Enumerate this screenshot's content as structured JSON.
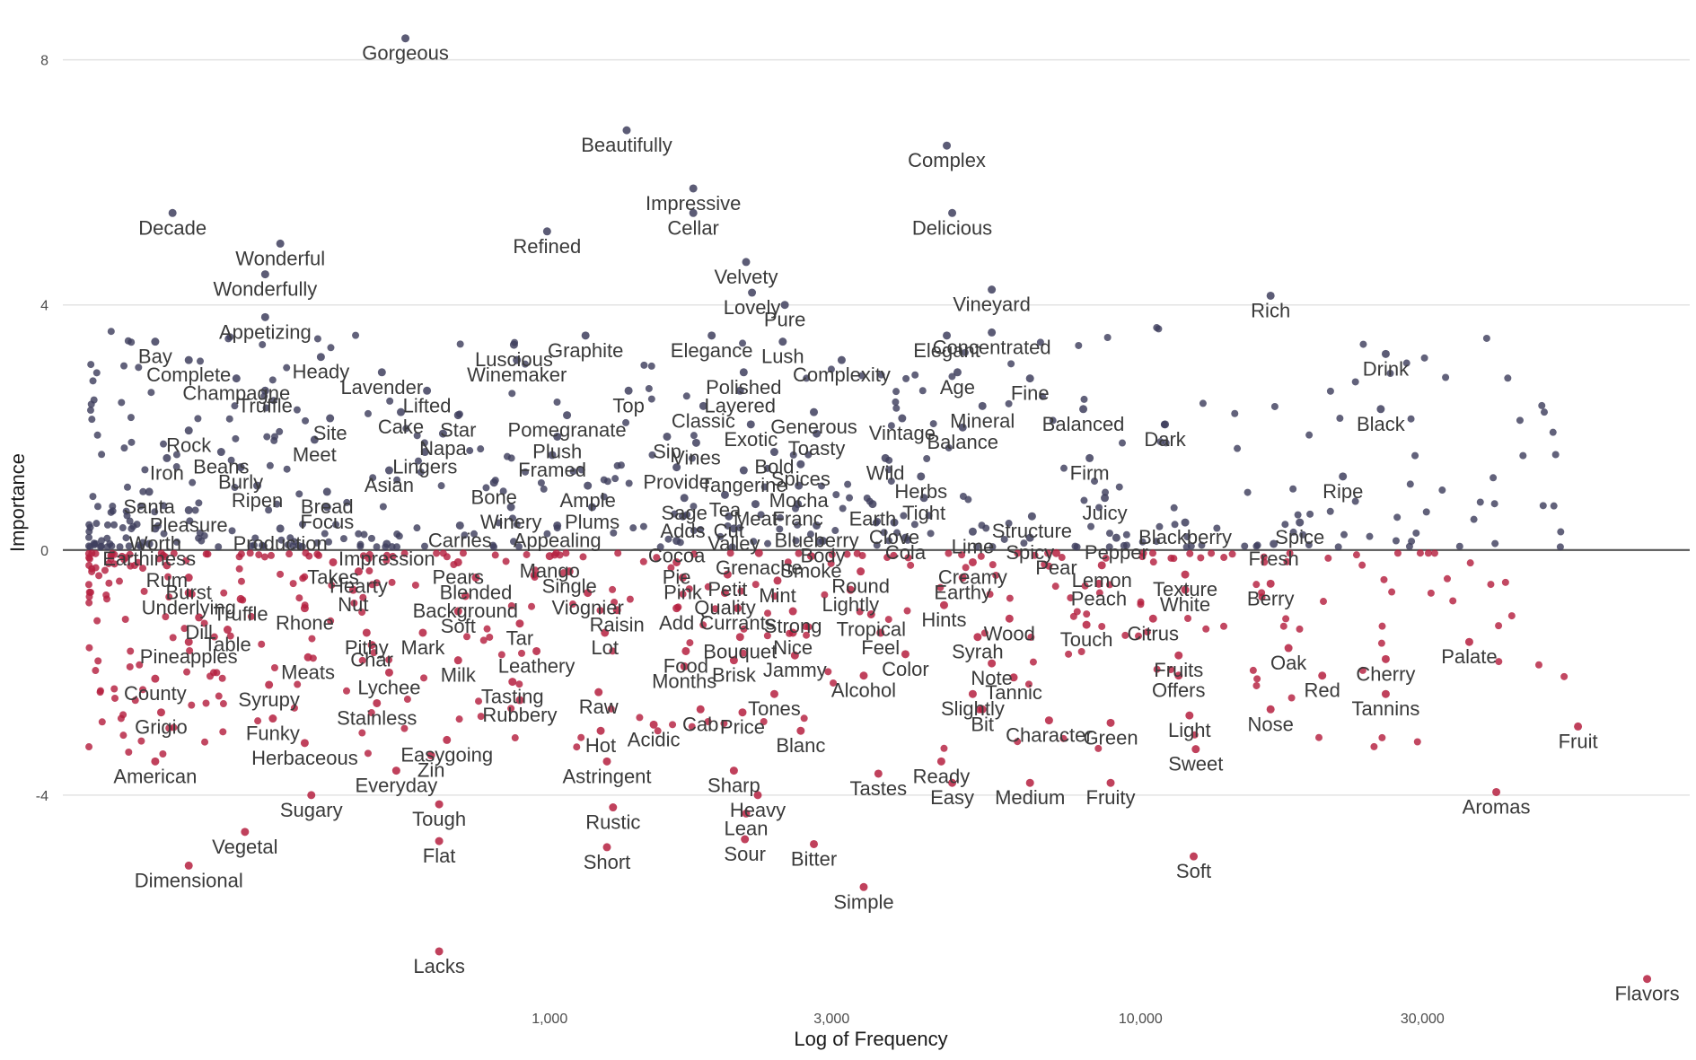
{
  "chart_data": {
    "type": "scatter",
    "xlabel": "Log of Frequency",
    "ylabel": "Importance",
    "x_scale": "log",
    "xlim": [
      150,
      85000
    ],
    "ylim": [
      -7.4,
      8.8
    ],
    "x_ticks": [
      {
        "value": 1000,
        "label": "1,000"
      },
      {
        "value": 3000,
        "label": "3,000"
      },
      {
        "value": 10000,
        "label": "10,000"
      },
      {
        "value": 30000,
        "label": "30,000"
      }
    ],
    "y_ticks": [
      {
        "value": 8,
        "label": "8"
      },
      {
        "value": 4,
        "label": "4"
      },
      {
        "value": 0,
        "label": "0"
      },
      {
        "value": -4,
        "label": "-4"
      }
    ],
    "grid": "horizontal",
    "legend": "none",
    "reference_line_y": 0,
    "colors": {
      "positive": "#3f3f5e",
      "negative": "#b5203f",
      "zero_line": "#555555",
      "grid": "#e3e3e3"
    },
    "labeled_points": [
      {
        "label": "Gorgeous",
        "x": 570,
        "y": 8.35
      },
      {
        "label": "Beautifully",
        "x": 1350,
        "y": 6.85
      },
      {
        "label": "Complex",
        "x": 4700,
        "y": 6.6
      },
      {
        "label": "Impressive",
        "x": 1750,
        "y": 5.9
      },
      {
        "label": "Cellar",
        "x": 1750,
        "y": 5.5
      },
      {
        "label": "Decade",
        "x": 230,
        "y": 5.5
      },
      {
        "label": "Delicious",
        "x": 4800,
        "y": 5.5
      },
      {
        "label": "Refined",
        "x": 990,
        "y": 5.2
      },
      {
        "label": "Wonderful",
        "x": 350,
        "y": 5.0
      },
      {
        "label": "Velvety",
        "x": 2150,
        "y": 4.7
      },
      {
        "label": "Wonderfully",
        "x": 330,
        "y": 4.5
      },
      {
        "label": "Lovely",
        "x": 2200,
        "y": 4.2
      },
      {
        "label": "Vineyard",
        "x": 5600,
        "y": 4.25
      },
      {
        "label": "Rich",
        "x": 16600,
        "y": 4.15
      },
      {
        "label": "Pure",
        "x": 2500,
        "y": 4.0
      },
      {
        "label": "Appetizing",
        "x": 330,
        "y": 3.8
      },
      {
        "label": "Elegant",
        "x": 4700,
        "y": 3.5
      },
      {
        "label": "Concentrated",
        "x": 5600,
        "y": 3.55
      },
      {
        "label": "Bay",
        "x": 215,
        "y": 3.4
      },
      {
        "label": "Luscious",
        "x": 870,
        "y": 3.35
      },
      {
        "label": "Graphite",
        "x": 1150,
        "y": 3.5
      },
      {
        "label": "Elegance",
        "x": 1880,
        "y": 3.5
      },
      {
        "label": "Lush",
        "x": 2480,
        "y": 3.4
      },
      {
        "label": "Drink",
        "x": 26000,
        "y": 3.2
      },
      {
        "label": "Heady",
        "x": 410,
        "y": 3.15
      },
      {
        "label": "Complete",
        "x": 245,
        "y": 3.1
      },
      {
        "label": "Winemaker",
        "x": 880,
        "y": 3.1
      },
      {
        "label": "Complexity",
        "x": 3120,
        "y": 3.1
      },
      {
        "label": "Age",
        "x": 4900,
        "y": 2.9
      },
      {
        "label": "Polished",
        "x": 2130,
        "y": 2.9
      },
      {
        "label": "Champagne",
        "x": 295,
        "y": 2.8
      },
      {
        "label": "Lavender",
        "x": 520,
        "y": 2.9
      },
      {
        "label": "Fine",
        "x": 6500,
        "y": 2.8
      },
      {
        "label": "Truffle",
        "x": 330,
        "y": 2.6
      },
      {
        "label": "Top",
        "x": 1360,
        "y": 2.6
      },
      {
        "label": "Layered",
        "x": 2100,
        "y": 2.6
      },
      {
        "label": "Lifted",
        "x": 620,
        "y": 2.6
      },
      {
        "label": "Mineral",
        "x": 5400,
        "y": 2.35
      },
      {
        "label": "Balanced",
        "x": 8000,
        "y": 2.3
      },
      {
        "label": "Black",
        "x": 25500,
        "y": 2.3
      },
      {
        "label": "Classic",
        "x": 1820,
        "y": 2.35
      },
      {
        "label": "Generous",
        "x": 2800,
        "y": 2.25
      },
      {
        "label": "Vintage",
        "x": 3950,
        "y": 2.15
      },
      {
        "label": "Cake",
        "x": 560,
        "y": 2.25
      },
      {
        "label": "Star",
        "x": 700,
        "y": 2.2
      },
      {
        "label": "Pomegranate",
        "x": 1070,
        "y": 2.2
      },
      {
        "label": "Site",
        "x": 425,
        "y": 2.15
      },
      {
        "label": "Exotic",
        "x": 2190,
        "y": 2.05
      },
      {
        "label": "Dark",
        "x": 11000,
        "y": 2.05
      },
      {
        "label": "Balance",
        "x": 5000,
        "y": 2.0
      },
      {
        "label": "Rock",
        "x": 245,
        "y": 1.95
      },
      {
        "label": "Napa",
        "x": 660,
        "y": 1.9
      },
      {
        "label": "Toasty",
        "x": 2830,
        "y": 1.9
      },
      {
        "label": "Meet",
        "x": 400,
        "y": 1.8
      },
      {
        "label": "Plush",
        "x": 1030,
        "y": 1.85
      },
      {
        "label": "Sip",
        "x": 1580,
        "y": 1.85
      },
      {
        "label": "Vines",
        "x": 1770,
        "y": 1.75
      },
      {
        "label": "Iron",
        "x": 225,
        "y": 1.5
      },
      {
        "label": "Beans",
        "x": 278,
        "y": 1.6
      },
      {
        "label": "Lingers",
        "x": 615,
        "y": 1.6
      },
      {
        "label": "Framed",
        "x": 1010,
        "y": 1.55
      },
      {
        "label": "Bold",
        "x": 2400,
        "y": 1.6
      },
      {
        "label": "Wild",
        "x": 3700,
        "y": 1.5
      },
      {
        "label": "Firm",
        "x": 8200,
        "y": 1.5
      },
      {
        "label": "Burly",
        "x": 300,
        "y": 1.35
      },
      {
        "label": "Asian",
        "x": 535,
        "y": 1.3
      },
      {
        "label": "Provide",
        "x": 1640,
        "y": 1.35
      },
      {
        "label": "Tangerine",
        "x": 2130,
        "y": 1.3
      },
      {
        "label": "Spices",
        "x": 2660,
        "y": 1.4
      },
      {
        "label": "Herbs",
        "x": 4250,
        "y": 1.2
      },
      {
        "label": "Ripe",
        "x": 22000,
        "y": 1.2
      },
      {
        "label": "Ripen",
        "x": 320,
        "y": 1.05
      },
      {
        "label": "Bone",
        "x": 805,
        "y": 1.1
      },
      {
        "label": "Ample",
        "x": 1160,
        "y": 1.05
      },
      {
        "label": "Mocha",
        "x": 2640,
        "y": 1.05
      },
      {
        "label": "Santa",
        "x": 210,
        "y": 0.95
      },
      {
        "label": "Bread",
        "x": 420,
        "y": 0.95
      },
      {
        "label": "Sage",
        "x": 1690,
        "y": 0.85
      },
      {
        "label": "Tea",
        "x": 1980,
        "y": 0.9
      },
      {
        "label": "Tight",
        "x": 4300,
        "y": 0.85
      },
      {
        "label": "Juicy",
        "x": 8700,
        "y": 0.85
      },
      {
        "label": "Focus",
        "x": 420,
        "y": 0.7
      },
      {
        "label": "Winery",
        "x": 860,
        "y": 0.7
      },
      {
        "label": "Plums",
        "x": 1180,
        "y": 0.7
      },
      {
        "label": "Meat",
        "x": 2230,
        "y": 0.75
      },
      {
        "label": "Franc",
        "x": 2630,
        "y": 0.75
      },
      {
        "label": "Earth",
        "x": 3520,
        "y": 0.75
      },
      {
        "label": "Pleasure",
        "x": 245,
        "y": 0.65
      },
      {
        "label": "Adds",
        "x": 1680,
        "y": 0.55
      },
      {
        "label": "Cut",
        "x": 2010,
        "y": 0.55
      },
      {
        "label": "Structure",
        "x": 6550,
        "y": 0.55
      },
      {
        "label": "Blackberry",
        "x": 11900,
        "y": 0.45
      },
      {
        "label": "Spice",
        "x": 18600,
        "y": 0.45
      },
      {
        "label": "Clove",
        "x": 3830,
        "y": 0.45
      },
      {
        "label": "Blueberry",
        "x": 2830,
        "y": 0.4
      },
      {
        "label": "Carries",
        "x": 705,
        "y": 0.4
      },
      {
        "label": "Appealing",
        "x": 1030,
        "y": 0.4
      },
      {
        "label": "Worth",
        "x": 215,
        "y": 0.35
      },
      {
        "label": "Production",
        "x": 350,
        "y": 0.35
      },
      {
        "label": "Valley",
        "x": 2050,
        "y": 0.35
      },
      {
        "label": "Lime",
        "x": 5200,
        "y": 0.3
      },
      {
        "label": "Cola",
        "x": 4000,
        "y": 0.2
      },
      {
        "label": "Spicy",
        "x": 6500,
        "y": 0.2
      },
      {
        "label": "Pepper",
        "x": 9100,
        "y": 0.2
      },
      {
        "label": "Fresh",
        "x": 16800,
        "y": 0.1
      },
      {
        "label": "Earthiness",
        "x": 210,
        "y": 0.1
      },
      {
        "label": "Impression",
        "x": 530,
        "y": 0.1
      },
      {
        "label": "Cocoa",
        "x": 1640,
        "y": 0.15
      },
      {
        "label": "Body",
        "x": 2900,
        "y": 0.15
      },
      {
        "label": "Pear",
        "x": 7200,
        "y": -0.05
      },
      {
        "label": "Grenache",
        "x": 2260,
        "y": -0.05
      },
      {
        "label": "Mango",
        "x": 1000,
        "y": -0.1
      },
      {
        "label": "Smoke",
        "x": 2770,
        "y": -0.1
      },
      {
        "label": "Takes",
        "x": 430,
        "y": -0.2
      },
      {
        "label": "Pears",
        "x": 700,
        "y": -0.2
      },
      {
        "label": "Rum",
        "x": 225,
        "y": -0.25
      },
      {
        "label": "Pie",
        "x": 1640,
        "y": -0.2
      },
      {
        "label": "Creamy",
        "x": 5200,
        "y": -0.2
      },
      {
        "label": "Lemon",
        "x": 8600,
        "y": -0.25
      },
      {
        "label": "Single",
        "x": 1080,
        "y": -0.35
      },
      {
        "label": "Hearty",
        "x": 475,
        "y": -0.35
      },
      {
        "label": "Petit",
        "x": 2000,
        "y": -0.4
      },
      {
        "label": "Round",
        "x": 3360,
        "y": -0.35
      },
      {
        "label": "Texture",
        "x": 11900,
        "y": -0.4
      },
      {
        "label": "Burst",
        "x": 245,
        "y": -0.45
      },
      {
        "label": "Blended",
        "x": 750,
        "y": -0.45
      },
      {
        "label": "Pink",
        "x": 1680,
        "y": -0.45
      },
      {
        "label": "Mint",
        "x": 2430,
        "y": -0.5
      },
      {
        "label": "Earthy",
        "x": 5000,
        "y": -0.45
      },
      {
        "label": "Peach",
        "x": 8500,
        "y": -0.55
      },
      {
        "label": "Lightly",
        "x": 3230,
        "y": -0.65
      },
      {
        "label": "Quality",
        "x": 1980,
        "y": -0.7
      },
      {
        "label": "Nut",
        "x": 465,
        "y": -0.65
      },
      {
        "label": "Underlying",
        "x": 245,
        "y": -0.7
      },
      {
        "label": "Background",
        "x": 720,
        "y": -0.75
      },
      {
        "label": "Viognier",
        "x": 1160,
        "y": -0.7
      },
      {
        "label": "White",
        "x": 11900,
        "y": -0.65
      },
      {
        "label": "Berry",
        "x": 16600,
        "y": -0.55
      },
      {
        "label": "Truffle",
        "x": 300,
        "y": -0.8
      },
      {
        "label": "Hints",
        "x": 4650,
        "y": -0.9
      },
      {
        "label": "Rhone",
        "x": 385,
        "y": -0.95
      },
      {
        "label": "Currants",
        "x": 2080,
        "y": -0.95
      },
      {
        "label": "Add",
        "x": 1640,
        "y": -0.95
      },
      {
        "label": "Raisin",
        "x": 1300,
        "y": -0.98
      },
      {
        "label": "Strong",
        "x": 2580,
        "y": -1.0
      },
      {
        "label": "Tropical",
        "x": 3500,
        "y": -1.05
      },
      {
        "label": "Soft",
        "x": 700,
        "y": -1.0
      },
      {
        "label": "Dill",
        "x": 255,
        "y": -1.1
      },
      {
        "label": "Wood",
        "x": 6000,
        "y": -1.12
      },
      {
        "label": "Citrus",
        "x": 10500,
        "y": -1.12
      },
      {
        "label": "Tar",
        "x": 890,
        "y": -1.2
      },
      {
        "label": "Table",
        "x": 285,
        "y": -1.3
      },
      {
        "label": "Touch",
        "x": 8100,
        "y": -1.22
      },
      {
        "label": "Feel",
        "x": 3630,
        "y": -1.35
      },
      {
        "label": "Nice",
        "x": 2580,
        "y": -1.35
      },
      {
        "label": "Lot",
        "x": 1240,
        "y": -1.35
      },
      {
        "label": "Pithy",
        "x": 490,
        "y": -1.35
      },
      {
        "label": "Mark",
        "x": 610,
        "y": -1.35
      },
      {
        "label": "Syrah",
        "x": 5300,
        "y": -1.42
      },
      {
        "label": "Bouquet",
        "x": 2100,
        "y": -1.42
      },
      {
        "label": "Pineapples",
        "x": 245,
        "y": -1.5
      },
      {
        "label": "Char",
        "x": 500,
        "y": -1.55
      },
      {
        "label": "Oak",
        "x": 17800,
        "y": -1.6
      },
      {
        "label": "Palate",
        "x": 36000,
        "y": -1.5
      },
      {
        "label": "Leathery",
        "x": 950,
        "y": -1.65
      },
      {
        "label": "Food",
        "x": 1700,
        "y": -1.65
      },
      {
        "label": "Jammy",
        "x": 2600,
        "y": -1.72
      },
      {
        "label": "Color",
        "x": 4000,
        "y": -1.7
      },
      {
        "label": "Meats",
        "x": 390,
        "y": -1.75
      },
      {
        "label": "Milk",
        "x": 700,
        "y": -1.8
      },
      {
        "label": "Brisk",
        "x": 2050,
        "y": -1.8
      },
      {
        "label": "Fruits",
        "x": 11600,
        "y": -1.72
      },
      {
        "label": "Cherry",
        "x": 26000,
        "y": -1.78
      },
      {
        "label": "Months",
        "x": 1690,
        "y": -1.9
      },
      {
        "label": "Note",
        "x": 5600,
        "y": -1.85
      },
      {
        "label": "Lychee",
        "x": 535,
        "y": -2.0
      },
      {
        "label": "Offers",
        "x": 11600,
        "y": -2.05
      },
      {
        "label": "Red",
        "x": 20300,
        "y": -2.05
      },
      {
        "label": "Alcohol",
        "x": 3400,
        "y": -2.05
      },
      {
        "label": "Tannic",
        "x": 6100,
        "y": -2.08
      },
      {
        "label": "County",
        "x": 215,
        "y": -2.1
      },
      {
        "label": "Syrupy",
        "x": 335,
        "y": -2.2
      },
      {
        "label": "Tasting",
        "x": 865,
        "y": -2.15
      },
      {
        "label": "Raw",
        "x": 1210,
        "y": -2.32
      },
      {
        "label": "Slightly",
        "x": 5200,
        "y": -2.35
      },
      {
        "label": "Tones",
        "x": 2400,
        "y": -2.35
      },
      {
        "label": "Nose",
        "x": 16600,
        "y": -2.6
      },
      {
        "label": "Tannins",
        "x": 26000,
        "y": -2.35
      },
      {
        "label": "Stainless",
        "x": 510,
        "y": -2.5
      },
      {
        "label": "Rubbery",
        "x": 890,
        "y": -2.45
      },
      {
        "label": "Bit",
        "x": 5400,
        "y": -2.6
      },
      {
        "label": "Grigio",
        "x": 220,
        "y": -2.65
      },
      {
        "label": "Cab",
        "x": 1800,
        "y": -2.6
      },
      {
        "label": "Price",
        "x": 2120,
        "y": -2.65
      },
      {
        "label": "Character",
        "x": 7000,
        "y": -2.78
      },
      {
        "label": "Green",
        "x": 8900,
        "y": -2.82
      },
      {
        "label": "Light",
        "x": 12100,
        "y": -2.7
      },
      {
        "label": "Funky",
        "x": 340,
        "y": -2.75
      },
      {
        "label": "Acidic",
        "x": 1500,
        "y": -2.85
      },
      {
        "label": "Blanc",
        "x": 2660,
        "y": -2.95
      },
      {
        "label": "Fruit",
        "x": 55000,
        "y": -2.88
      },
      {
        "label": "Hot",
        "x": 1220,
        "y": -2.95
      },
      {
        "label": "Easygoing",
        "x": 670,
        "y": -3.1
      },
      {
        "label": "Herbaceous",
        "x": 385,
        "y": -3.15
      },
      {
        "label": "Sweet",
        "x": 12400,
        "y": -3.25
      },
      {
        "label": "Zin",
        "x": 630,
        "y": -3.35
      },
      {
        "label": "Ready",
        "x": 4600,
        "y": -3.45
      },
      {
        "label": "American",
        "x": 215,
        "y": -3.45
      },
      {
        "label": "Astringent",
        "x": 1250,
        "y": -3.45
      },
      {
        "label": "Everyday",
        "x": 550,
        "y": -3.6
      },
      {
        "label": "Sharp",
        "x": 2050,
        "y": -3.6
      },
      {
        "label": "Tastes",
        "x": 3600,
        "y": -3.65
      },
      {
        "label": "Medium",
        "x": 6500,
        "y": -3.8
      },
      {
        "label": "Fruity",
        "x": 8900,
        "y": -3.8
      },
      {
        "label": "Easy",
        "x": 4800,
        "y": -3.8
      },
      {
        "label": "Aromas",
        "x": 40000,
        "y": -3.95
      },
      {
        "label": "Heavy",
        "x": 2250,
        "y": -4.0
      },
      {
        "label": "Sugary",
        "x": 395,
        "y": -4.0
      },
      {
        "label": "Tough",
        "x": 650,
        "y": -4.15
      },
      {
        "label": "Rustic",
        "x": 1280,
        "y": -4.2
      },
      {
        "label": "Lean",
        "x": 2150,
        "y": -4.3
      },
      {
        "label": "Vegetal",
        "x": 305,
        "y": -4.6
      },
      {
        "label": "Sour",
        "x": 2140,
        "y": -4.72
      },
      {
        "label": "Flat",
        "x": 650,
        "y": -4.75
      },
      {
        "label": "Bitter",
        "x": 2800,
        "y": -4.8
      },
      {
        "label": "Short",
        "x": 1250,
        "y": -4.85
      },
      {
        "label": "Soft",
        "x": 12300,
        "y": -5.0
      },
      {
        "label": "Dimensional",
        "x": 245,
        "y": -5.15
      },
      {
        "label": "Simple",
        "x": 3400,
        "y": -5.5
      },
      {
        "label": "Lacks",
        "x": 650,
        "y": -6.55
      },
      {
        "label": "Flavors",
        "x": 72000,
        "y": -7.0
      }
    ]
  }
}
